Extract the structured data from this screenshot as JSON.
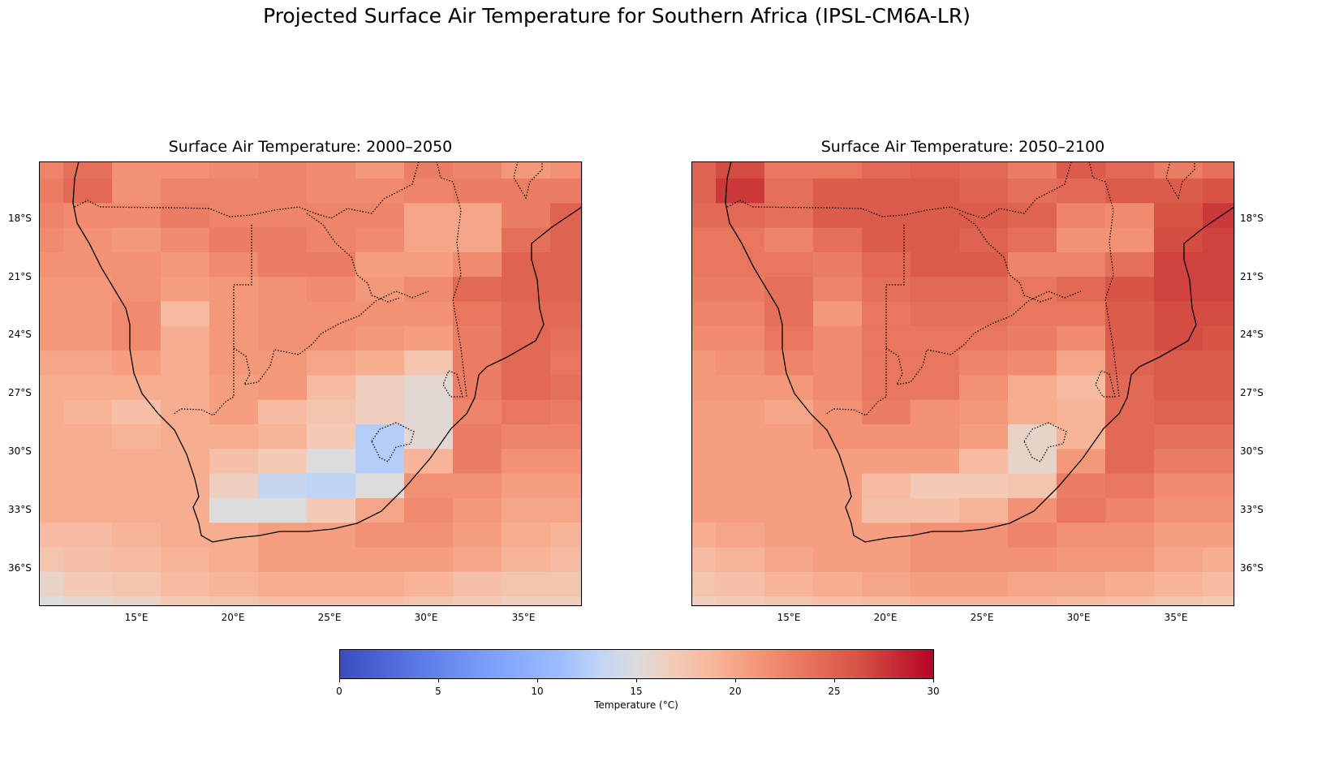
{
  "suptitle": "Projected Surface Air Temperature for Southern Africa (IPSL-CM6A-LR)",
  "chart_data": {
    "type": "heatmap",
    "colormap": "coolwarm",
    "colorbar": {
      "label": "Temperature (°C)",
      "range": [
        0,
        30
      ],
      "ticks": [
        "0",
        "5",
        "10",
        "15",
        "20",
        "25",
        "30"
      ]
    },
    "x_ticks": [
      "15°E",
      "20°E",
      "25°E",
      "30°E",
      "35°E"
    ],
    "y_ticks": [
      "18°S",
      "21°S",
      "24°S",
      "27°S",
      "30°S",
      "33°S",
      "36°S"
    ],
    "lon_range": [
      10,
      38
    ],
    "lat_range": [
      -15.1,
      -37.9
    ],
    "lon_centers": [
      10,
      12.5,
      15,
      17.5,
      20,
      22.5,
      25,
      27.5,
      30,
      32.5,
      35,
      37.5
    ],
    "lat_centers": [
      -15.2,
      -16.5,
      -17.7,
      -19.0,
      -20.3,
      -21.5,
      -22.8,
      -24.1,
      -25.3,
      -26.6,
      -27.9,
      -29.1,
      -30.4,
      -31.7,
      -32.9,
      -34.2,
      -35.4,
      -36.7,
      -37.9
    ],
    "panels": [
      {
        "title": "Surface Air Temperature: 2000–2050",
        "values": [
          [
            22.5,
            24,
            21.5,
            21.5,
            22,
            22.5,
            22,
            21,
            23,
            22.5,
            21,
            21.5
          ],
          [
            23,
            24.5,
            21.5,
            22.5,
            22.5,
            22.5,
            22,
            22,
            22.5,
            23,
            23,
            23
          ],
          [
            22.5,
            22,
            22,
            23,
            22.5,
            22.5,
            22.5,
            22.5,
            20,
            20,
            23,
            25
          ],
          [
            22,
            21.5,
            21,
            22,
            23,
            23,
            22.5,
            22,
            20,
            20,
            24,
            25
          ],
          [
            21.5,
            21.5,
            21.5,
            21,
            22,
            23,
            23,
            20.5,
            20.5,
            22,
            25,
            25
          ],
          [
            21,
            21,
            21.5,
            20.5,
            21,
            21.5,
            22,
            21,
            22,
            24.5,
            25,
            25
          ],
          [
            21,
            21,
            22,
            18.5,
            21,
            21.5,
            21.5,
            21.5,
            21.5,
            23.5,
            24.5,
            24.5
          ],
          [
            21,
            21,
            22,
            19.5,
            21,
            21.5,
            21.5,
            21,
            20.5,
            23,
            24.5,
            24
          ],
          [
            20,
            20,
            20.5,
            19.5,
            21,
            21,
            20,
            19.5,
            17.5,
            23,
            24.5,
            23.5
          ],
          [
            19.5,
            19.5,
            19.5,
            19.5,
            20.5,
            21,
            18.5,
            16.5,
            15.5,
            23,
            24.5,
            24
          ],
          [
            19.5,
            19,
            18,
            19.5,
            20.5,
            18.5,
            17.5,
            16.5,
            15.5,
            22.5,
            23.5,
            23
          ],
          [
            19.5,
            19.5,
            19,
            19.5,
            19.5,
            19,
            17,
            12.5,
            15.5,
            23,
            22.5,
            22.5
          ],
          [
            19.5,
            19.5,
            19.5,
            19.5,
            18,
            17,
            15,
            12.5,
            19,
            23,
            21.5,
            21.5
          ],
          [
            19.5,
            19.5,
            19.5,
            19.5,
            16.5,
            13.5,
            13,
            15,
            21.5,
            21.5,
            20.5,
            20.5
          ],
          [
            19.5,
            19.5,
            19.5,
            19.5,
            15,
            15,
            17,
            20,
            22,
            21,
            20,
            20
          ],
          [
            18.5,
            18.5,
            19,
            19.5,
            19.5,
            20.5,
            20.5,
            21.5,
            21.5,
            20.5,
            19.5,
            19
          ],
          [
            17.5,
            18,
            18.5,
            19,
            19.5,
            20.5,
            20.5,
            20.5,
            20.5,
            20,
            19,
            18.5
          ],
          [
            16,
            17,
            17.5,
            18.5,
            19,
            19.5,
            19.5,
            19.5,
            19,
            18,
            17.5,
            17.5
          ],
          [
            15,
            15.5,
            16,
            17,
            17.5,
            18,
            18,
            18,
            17.5,
            17,
            16.5,
            16.5
          ]
        ]
      },
      {
        "title": "Surface Air Temperature: 2050–2100",
        "values": [
          [
            25,
            26.5,
            23.5,
            23.5,
            24.5,
            25,
            24.5,
            23,
            25.5,
            24.5,
            23,
            24
          ],
          [
            25,
            27.5,
            24,
            25.5,
            25.5,
            25.5,
            25,
            24,
            24.5,
            25.5,
            25.5,
            26
          ],
          [
            24.5,
            24.5,
            24,
            25.5,
            25.5,
            25.5,
            25.5,
            25,
            22.5,
            22,
            26,
            27.5
          ],
          [
            23.5,
            23.5,
            22.5,
            24,
            25.5,
            25.5,
            25,
            24,
            21.5,
            21.5,
            26.5,
            27
          ],
          [
            23.5,
            23.5,
            23.5,
            23,
            24.5,
            25.5,
            25.5,
            22.5,
            22.5,
            24,
            27,
            27
          ],
          [
            23,
            23,
            24,
            22.5,
            24,
            24.5,
            24.5,
            23.5,
            24.5,
            26,
            27,
            27
          ],
          [
            22.5,
            22.5,
            24,
            21,
            23.5,
            24,
            24,
            23.5,
            23.5,
            25.5,
            26.5,
            26.5
          ],
          [
            22,
            22,
            23.5,
            22,
            23.5,
            23.5,
            23.5,
            23,
            22,
            25.5,
            26.5,
            26
          ],
          [
            21,
            21.5,
            22.5,
            22,
            23.5,
            23.5,
            22.5,
            22,
            20,
            25,
            25.5,
            25.5
          ],
          [
            21,
            21,
            21,
            22,
            23.5,
            23.5,
            21.5,
            19.5,
            18.5,
            24.5,
            25.5,
            25.5
          ],
          [
            20.5,
            20.5,
            20,
            21.5,
            23,
            21.5,
            21,
            19.5,
            19,
            24.5,
            25,
            25
          ],
          [
            20.5,
            20.5,
            20.5,
            21.5,
            21.5,
            21.5,
            20.5,
            16,
            19,
            24.5,
            24,
            24
          ],
          [
            20.5,
            20.5,
            20.5,
            20.5,
            20.5,
            20.5,
            18.5,
            16,
            21,
            24.5,
            23,
            23
          ],
          [
            20.5,
            20.5,
            20.5,
            20.5,
            18.5,
            17,
            17,
            17.5,
            23,
            23.5,
            22,
            22
          ],
          [
            20.5,
            20.5,
            20.5,
            20.5,
            18,
            18,
            19,
            21.5,
            23.5,
            22.5,
            21.5,
            21.5
          ],
          [
            19.5,
            20,
            20.5,
            20.5,
            20.5,
            21.5,
            21.5,
            22.5,
            21.5,
            21.5,
            20.5,
            20.5
          ],
          [
            18.5,
            19,
            20,
            20.5,
            20.5,
            21.5,
            21.5,
            21.5,
            21,
            21,
            20,
            19.5
          ],
          [
            17.5,
            18,
            19,
            19.5,
            20,
            20.5,
            20.5,
            20,
            20,
            19.5,
            19,
            18.5
          ],
          [
            16.5,
            17,
            17.5,
            18,
            18.5,
            19,
            19,
            19,
            18.5,
            18,
            17.5,
            17
          ]
        ]
      }
    ]
  }
}
